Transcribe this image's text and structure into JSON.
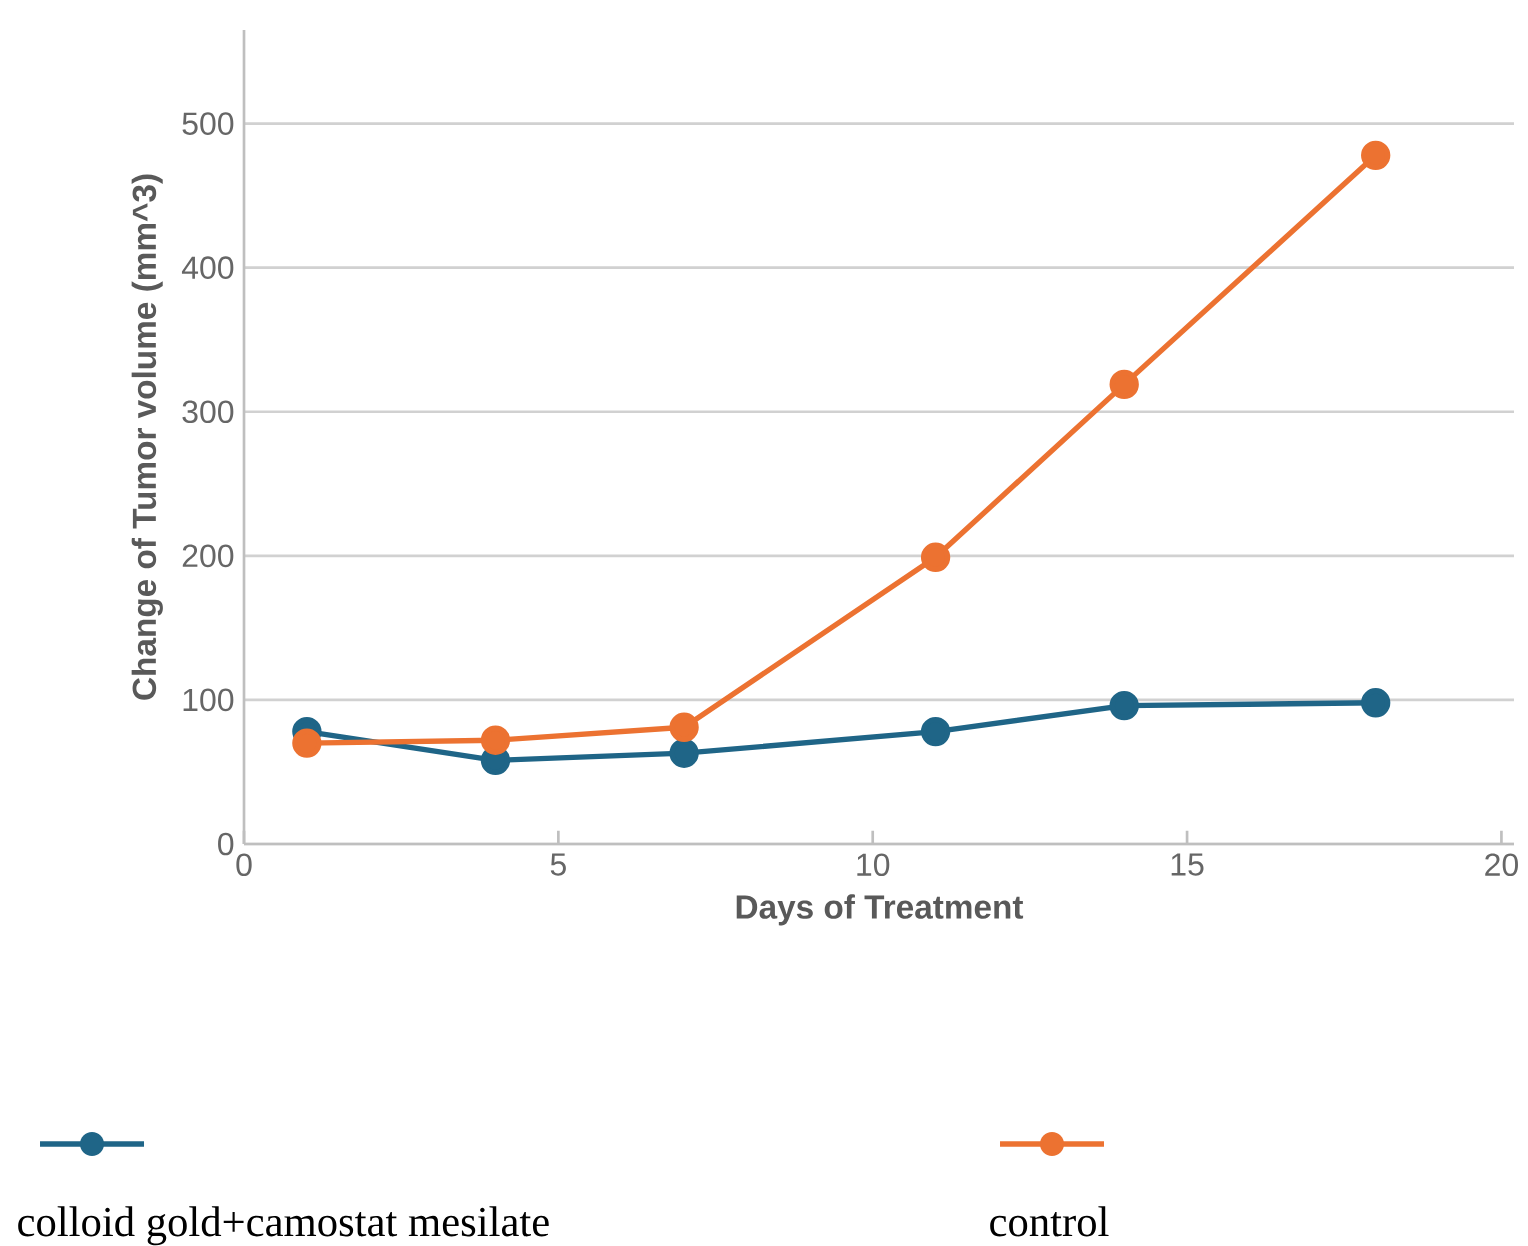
{
  "chart_data": {
    "type": "line",
    "xlabel": "Days of Treatment",
    "ylabel": "Change of Tumor volume (mm^3)",
    "xlim": [
      0,
      20.2
    ],
    "ylim": [
      0,
      565
    ],
    "xticks": [
      0,
      5,
      10,
      15,
      20
    ],
    "yticks": [
      0,
      100,
      200,
      300,
      400,
      500
    ],
    "grid": "y",
    "legend": "bottom",
    "marker": "circle",
    "line_style": "solid",
    "series": [
      {
        "name": "colloid gold+camostat mesilate",
        "color": "#1f6587",
        "x": [
          1,
          4,
          7,
          11,
          14,
          18
        ],
        "values": [
          78,
          58,
          63,
          78,
          96,
          98
        ]
      },
      {
        "name": "control",
        "color": "#ec7231",
        "x": [
          1,
          4,
          7,
          11,
          14,
          18
        ],
        "values": [
          70,
          72,
          81,
          199,
          319,
          478
        ]
      }
    ]
  }
}
